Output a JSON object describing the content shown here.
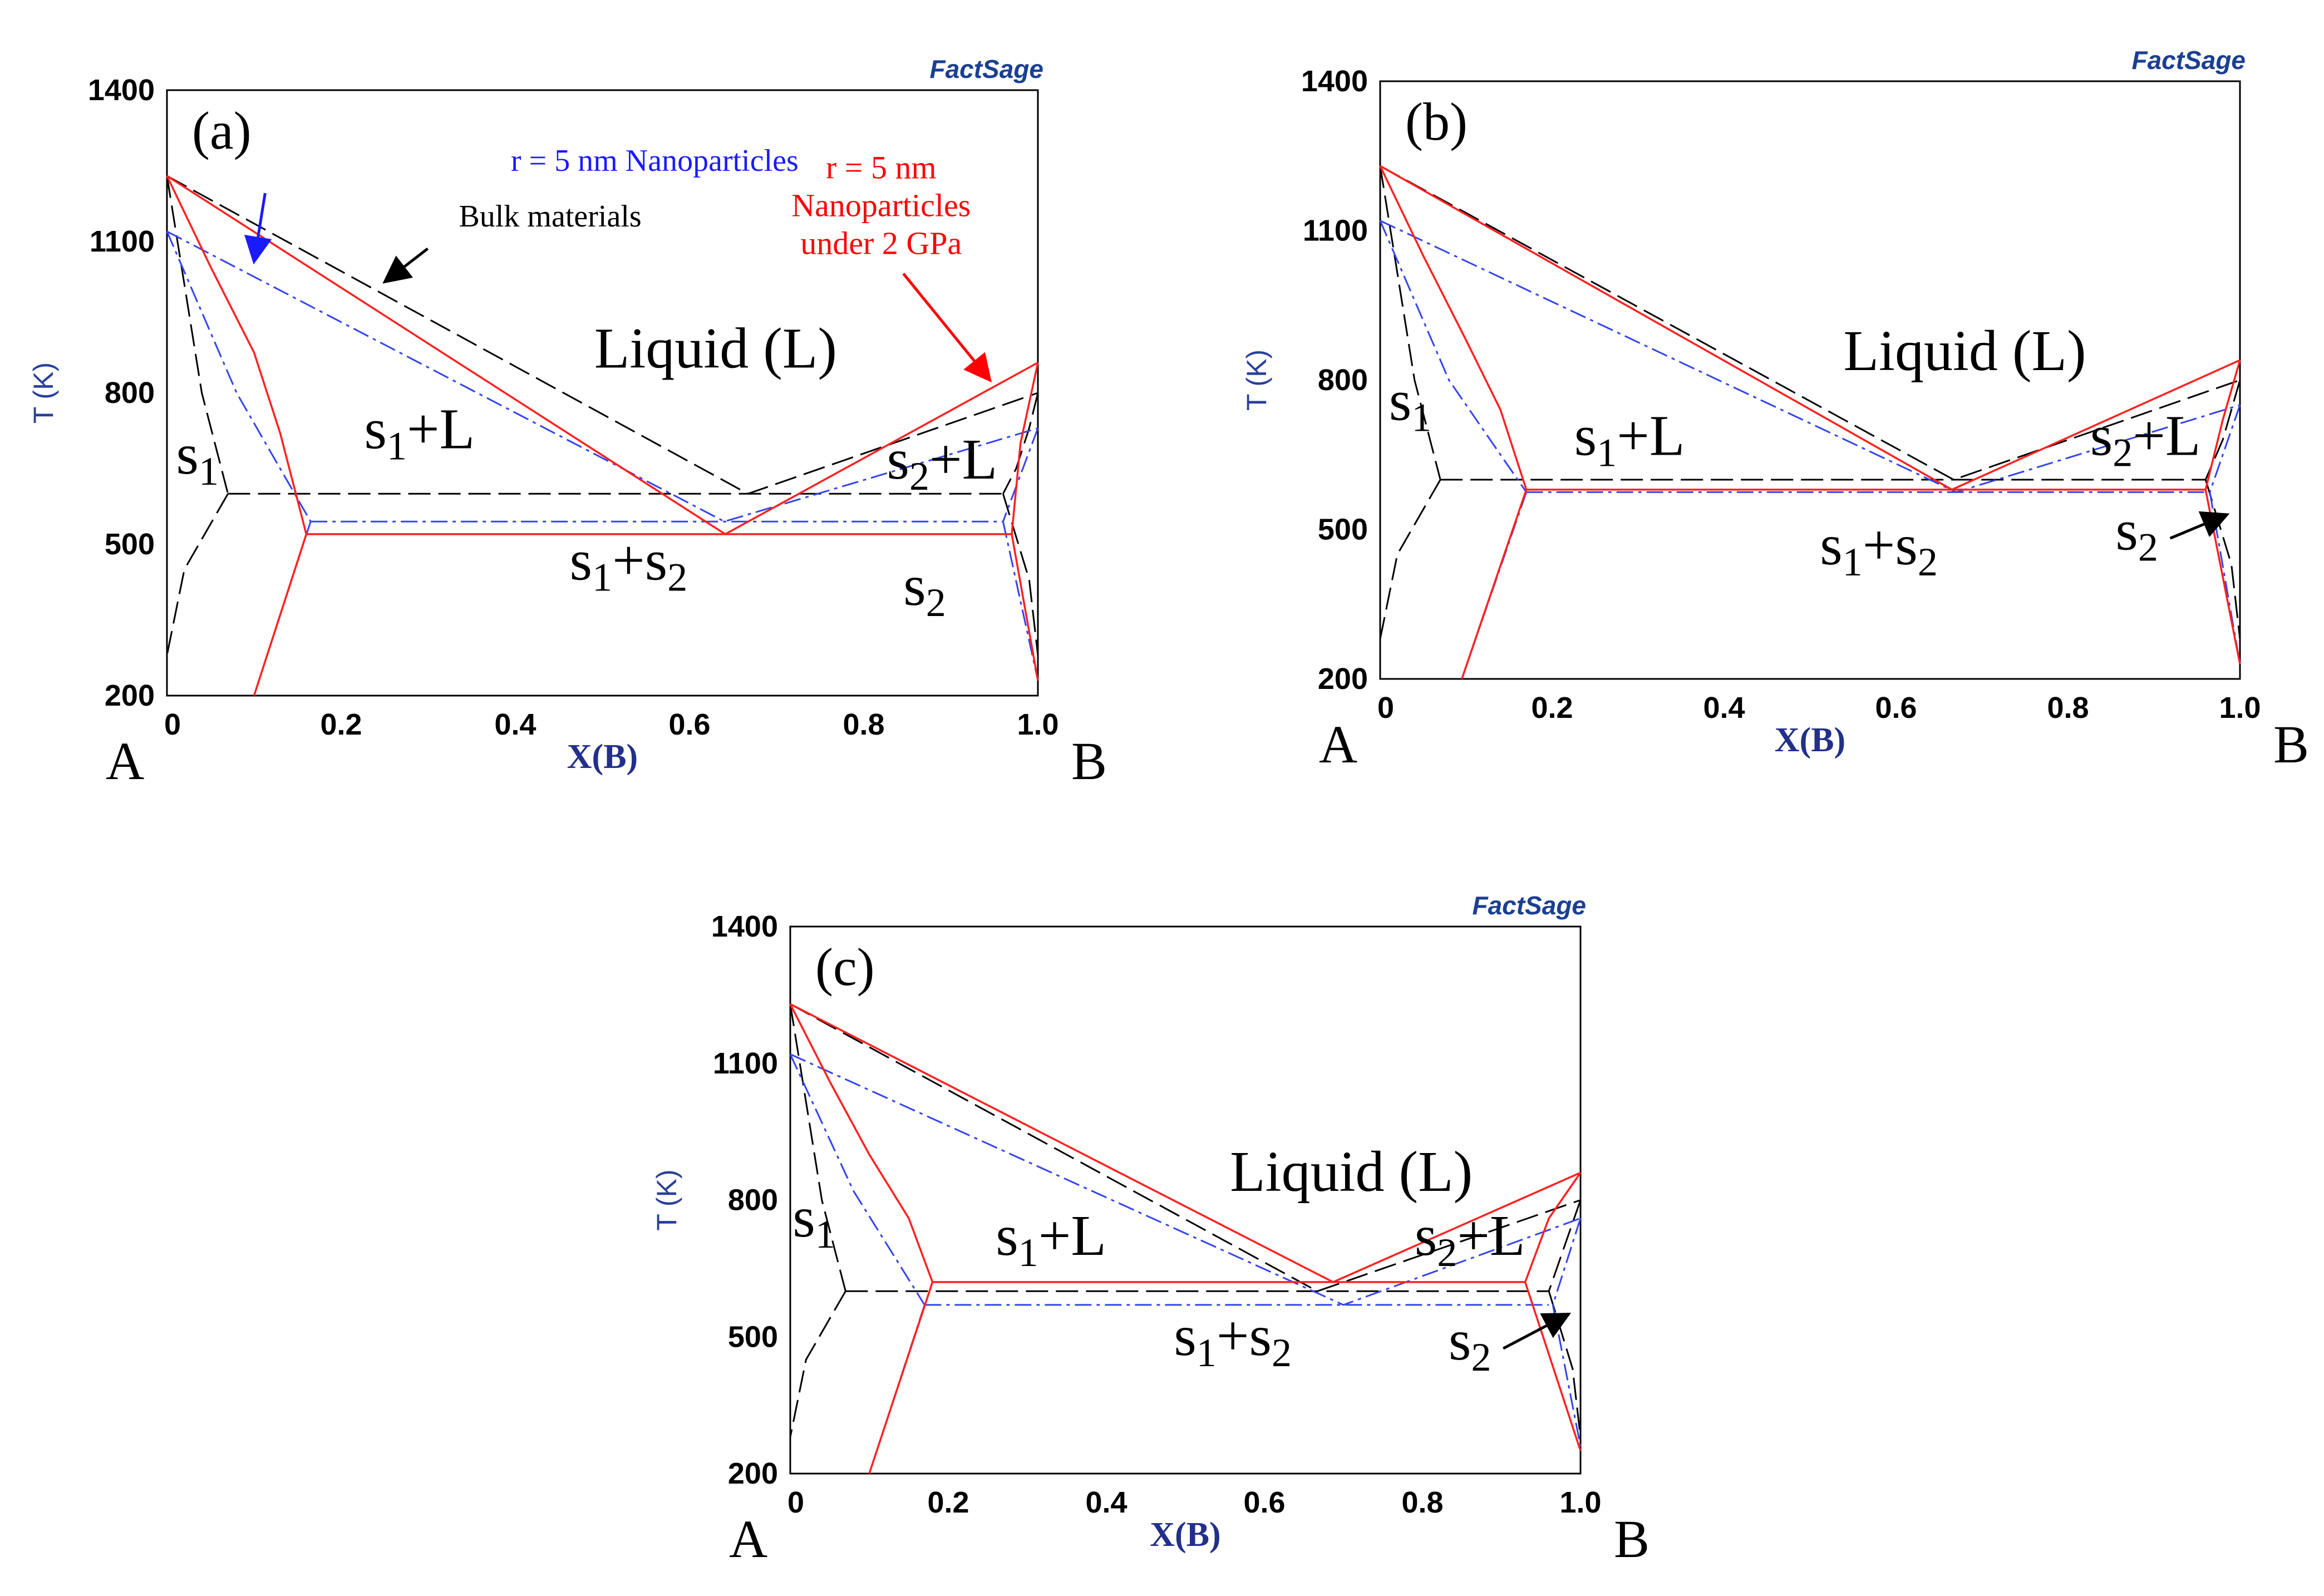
{
  "figure": {
    "logo_text": "FactSage",
    "colors": {
      "bulk": "#000000",
      "nanoparticles": "#3344ee",
      "nanoparticles_pressure": "#ff2020",
      "axis_label": "#22308a",
      "logo": "#1b3f91"
    }
  },
  "chart_data": [
    {
      "type": "line",
      "panel": "(a)",
      "xlabel": "X(B)",
      "ylabel": "T (K)",
      "xlim": [
        0,
        1.0
      ],
      "ylim": [
        200,
        1400
      ],
      "x_ticks": [
        "0",
        "0.2",
        "0.4",
        "0.6",
        "0.8",
        "1.0"
      ],
      "y_ticks": [
        "200",
        "500",
        "800",
        "1100",
        "1400"
      ],
      "corner_left": "A",
      "corner_right": "B",
      "regions": [
        {
          "label": "Liquid (L)",
          "x": 0.63,
          "y": 850
        },
        {
          "label": "s1+L",
          "x": 0.29,
          "y": 690
        },
        {
          "label": "s2+L",
          "x": 0.89,
          "y": 630
        },
        {
          "label": "s1+s2",
          "x": 0.53,
          "y": 430
        },
        {
          "label": "s1",
          "x": 0.035,
          "y": 640
        },
        {
          "label": "s2",
          "x": 0.87,
          "y": 380
        }
      ],
      "annotations": [
        {
          "text": "r = 5 nm Nanoparticles",
          "color": "blue",
          "x": 0.56,
          "y": 1240,
          "arrow_to": [
            0.1,
            1060
          ]
        },
        {
          "text": "Bulk materials",
          "color": "black",
          "x": 0.44,
          "y": 1130,
          "arrow_to": [
            0.25,
            1020
          ]
        },
        {
          "text": "r = 5 nm",
          "color": "red",
          "x": 0.82,
          "y": 1225
        },
        {
          "text": "Nanoparticles",
          "color": "red",
          "x": 0.82,
          "y": 1150
        },
        {
          "text": "under 2 GPa",
          "color": "red",
          "x": 0.82,
          "y": 1075,
          "arrow_to": [
            0.945,
            825
          ]
        }
      ],
      "series": [
        {
          "name": "Bulk materials",
          "style": "dashed",
          "color": "black",
          "lines": [
            {
              "x": [
                0,
                0.667,
                1.0
              ],
              "y": [
                1230,
                600,
                800
              ]
            },
            {
              "x": [
                0.07,
                0.96
              ],
              "y": [
                600,
                600
              ]
            },
            {
              "x": [
                0,
                0.04,
                0.07
              ],
              "y": [
                1230,
                800,
                600
              ]
            },
            {
              "x": [
                0.07,
                0.02,
                0.0
              ],
              "y": [
                600,
                450,
                280
              ]
            },
            {
              "x": [
                1.0,
                0.99,
                0.975,
                0.96
              ],
              "y": [
                800,
                730,
                650,
                600
              ]
            },
            {
              "x": [
                0.96,
                0.99,
                1.0
              ],
              "y": [
                600,
                430,
                280
              ]
            }
          ]
        },
        {
          "name": "r = 5 nm Nanoparticles",
          "style": "dash-dot",
          "color": "blue",
          "lines": [
            {
              "x": [
                0,
                0.64,
                1.0
              ],
              "y": [
                1120,
                545,
                730
              ]
            },
            {
              "x": [
                0.165,
                0.96
              ],
              "y": [
                545,
                545
              ]
            },
            {
              "x": [
                0,
                0.08,
                0.165
              ],
              "y": [
                1120,
                800,
                545
              ]
            },
            {
              "x": [
                0.165,
                0.1
              ],
              "y": [
                545,
                200
              ]
            },
            {
              "x": [
                1.0,
                0.96
              ],
              "y": [
                730,
                545
              ]
            },
            {
              "x": [
                0.96,
                1.0
              ],
              "y": [
                545,
                230
              ]
            }
          ]
        },
        {
          "name": "r = 5 nm Nanoparticles under 2 GPa",
          "style": "solid",
          "color": "red",
          "lines": [
            {
              "x": [
                0,
                0.641,
                1.0
              ],
              "y": [
                1230,
                520,
                860
              ]
            },
            {
              "x": [
                0.16,
                0.97
              ],
              "y": [
                520,
                520
              ]
            },
            {
              "x": [
                0,
                0.05,
                0.1,
                0.13,
                0.16
              ],
              "y": [
                1230,
                1050,
                880,
                720,
                520
              ]
            },
            {
              "x": [
                0.16,
                0.1
              ],
              "y": [
                520,
                200
              ]
            },
            {
              "x": [
                1.0,
                0.98,
                0.97
              ],
              "y": [
                860,
                700,
                520
              ]
            },
            {
              "x": [
                0.97,
                1.0
              ],
              "y": [
                520,
                230
              ]
            }
          ]
        }
      ]
    },
    {
      "type": "line",
      "panel": "(b)",
      "xlabel": "X(B)",
      "ylabel": "T (K)",
      "xlim": [
        0,
        1.0
      ],
      "ylim": [
        200,
        1400
      ],
      "x_ticks": [
        "0",
        "0.2",
        "0.4",
        "0.6",
        "0.8",
        "1.0"
      ],
      "y_ticks": [
        "200",
        "500",
        "800",
        "1100",
        "1400"
      ],
      "corner_left": "A",
      "corner_right": "B",
      "regions": [
        {
          "label": "Liquid (L)",
          "x": 0.68,
          "y": 820
        },
        {
          "label": "s1+L",
          "x": 0.29,
          "y": 650
        },
        {
          "label": "s2+L",
          "x": 0.89,
          "y": 650
        },
        {
          "label": "s1+s2",
          "x": 0.58,
          "y": 430
        },
        {
          "label": "s1",
          "x": 0.035,
          "y": 720
        },
        {
          "label": "s2",
          "x": 0.88,
          "y": 460
        }
      ],
      "annotations": [
        {
          "text": "s2",
          "color": "black",
          "x": 0.88,
          "y": 460,
          "arrow_to": [
            0.985,
            530
          ]
        }
      ],
      "series": [
        {
          "name": "Bulk materials",
          "style": "dashed",
          "color": "black",
          "lines": [
            {
              "x": [
                0,
                0.667,
                1.0
              ],
              "y": [
                1230,
                600,
                800
              ]
            },
            {
              "x": [
                0.07,
                0.96
              ],
              "y": [
                600,
                600
              ]
            },
            {
              "x": [
                0,
                0.04,
                0.07
              ],
              "y": [
                1230,
                800,
                600
              ]
            },
            {
              "x": [
                0.07,
                0.02,
                0.0
              ],
              "y": [
                600,
                450,
                280
              ]
            },
            {
              "x": [
                1.0,
                0.98,
                0.96
              ],
              "y": [
                800,
                680,
                600
              ]
            },
            {
              "x": [
                0.96,
                0.99,
                1.0
              ],
              "y": [
                600,
                430,
                280
              ]
            }
          ]
        },
        {
          "name": "r = 5 nm Nanoparticles",
          "style": "dash-dot",
          "color": "blue",
          "lines": [
            {
              "x": [
                0,
                0.67,
                1.0
              ],
              "y": [
                1120,
                575,
                750
              ]
            },
            {
              "x": [
                0.17,
                0.96
              ],
              "y": [
                575,
                575
              ]
            },
            {
              "x": [
                0,
                0.08,
                0.17
              ],
              "y": [
                1120,
                800,
                575
              ]
            },
            {
              "x": [
                0.17,
                0.095
              ],
              "y": [
                575,
                200
              ]
            },
            {
              "x": [
                1.0,
                0.965
              ],
              "y": [
                750,
                575
              ]
            },
            {
              "x": [
                0.965,
                1.0
              ],
              "y": [
                575,
                230
              ]
            }
          ]
        },
        {
          "name": "r = 5 nm Nanoparticles under 2 GPa",
          "style": "solid",
          "color": "red",
          "lines": [
            {
              "x": [
                0,
                0.665,
                1.0
              ],
              "y": [
                1230,
                580,
                840
              ]
            },
            {
              "x": [
                0.17,
                0.96
              ],
              "y": [
                580,
                580
              ]
            },
            {
              "x": [
                0,
                0.05,
                0.1,
                0.14,
                0.17
              ],
              "y": [
                1230,
                1050,
                880,
                740,
                580
              ]
            },
            {
              "x": [
                0.17,
                0.095
              ],
              "y": [
                580,
                200
              ]
            },
            {
              "x": [
                1.0,
                0.98,
                0.96
              ],
              "y": [
                840,
                720,
                580
              ]
            },
            {
              "x": [
                0.96,
                1.0
              ],
              "y": [
                580,
                230
              ]
            }
          ]
        }
      ]
    },
    {
      "type": "line",
      "panel": "(c)",
      "xlabel": "X(B)",
      "ylabel": "T (K)",
      "xlim": [
        0,
        1.0
      ],
      "ylim": [
        200,
        1400
      ],
      "x_ticks": [
        "0",
        "0.2",
        "0.4",
        "0.6",
        "0.8",
        "1.0"
      ],
      "y_ticks": [
        "200",
        "500",
        "800",
        "1100",
        "1400"
      ],
      "corner_left": "A",
      "corner_right": "B",
      "regions": [
        {
          "label": "Liquid (L)",
          "x": 0.71,
          "y": 820
        },
        {
          "label": "s1+L",
          "x": 0.33,
          "y": 680
        },
        {
          "label": "s2+L",
          "x": 0.86,
          "y": 680
        },
        {
          "label": "s1+s2",
          "x": 0.56,
          "y": 460
        },
        {
          "label": "s1",
          "x": 0.03,
          "y": 720
        },
        {
          "label": "s2",
          "x": 0.86,
          "y": 450
        }
      ],
      "annotations": [
        {
          "text": "s2",
          "color": "black",
          "x": 0.86,
          "y": 450,
          "arrow_to": [
            0.985,
            550
          ]
        }
      ],
      "series": [
        {
          "name": "Bulk materials",
          "style": "dashed",
          "color": "black",
          "lines": [
            {
              "x": [
                0,
                0.667,
                1.0
              ],
              "y": [
                1230,
                600,
                800
              ]
            },
            {
              "x": [
                0.07,
                0.96
              ],
              "y": [
                600,
                600
              ]
            },
            {
              "x": [
                0,
                0.04,
                0.07
              ],
              "y": [
                1230,
                800,
                600
              ]
            },
            {
              "x": [
                0.07,
                0.02,
                0.0
              ],
              "y": [
                600,
                450,
                280
              ]
            },
            {
              "x": [
                1.0,
                0.98,
                0.96
              ],
              "y": [
                800,
                700,
                600
              ]
            },
            {
              "x": [
                0.96,
                0.99,
                1.0
              ],
              "y": [
                600,
                430,
                280
              ]
            }
          ]
        },
        {
          "name": "r = 5 nm Nanoparticles",
          "style": "dash-dot",
          "color": "blue",
          "lines": [
            {
              "x": [
                0,
                0.7,
                1.0
              ],
              "y": [
                1120,
                570,
                760
              ]
            },
            {
              "x": [
                0.17,
                0.96
              ],
              "y": [
                570,
                570
              ]
            },
            {
              "x": [
                0,
                0.08,
                0.17
              ],
              "y": [
                1120,
                820,
                570
              ]
            },
            {
              "x": [
                0.17,
                0.1
              ],
              "y": [
                570,
                200
              ]
            },
            {
              "x": [
                1.0,
                0.965
              ],
              "y": [
                760,
                570
              ]
            },
            {
              "x": [
                0.965,
                1.0
              ],
              "y": [
                570,
                260
              ]
            }
          ]
        },
        {
          "name": "r = 5 nm Nanoparticles under 2 GPa",
          "style": "solid",
          "color": "red",
          "lines": [
            {
              "x": [
                0,
                0.687,
                1.0
              ],
              "y": [
                1230,
                620,
                860
              ]
            },
            {
              "x": [
                0.18,
                0.93
              ],
              "y": [
                620,
                620
              ]
            },
            {
              "x": [
                0,
                0.05,
                0.1,
                0.15,
                0.18
              ],
              "y": [
                1230,
                1060,
                900,
                760,
                620
              ]
            },
            {
              "x": [
                0.18,
                0.1
              ],
              "y": [
                620,
                200
              ]
            },
            {
              "x": [
                1.0,
                0.96,
                0.93
              ],
              "y": [
                860,
                760,
                620
              ]
            },
            {
              "x": [
                0.93,
                1.0
              ],
              "y": [
                620,
                250
              ]
            }
          ]
        }
      ]
    }
  ]
}
